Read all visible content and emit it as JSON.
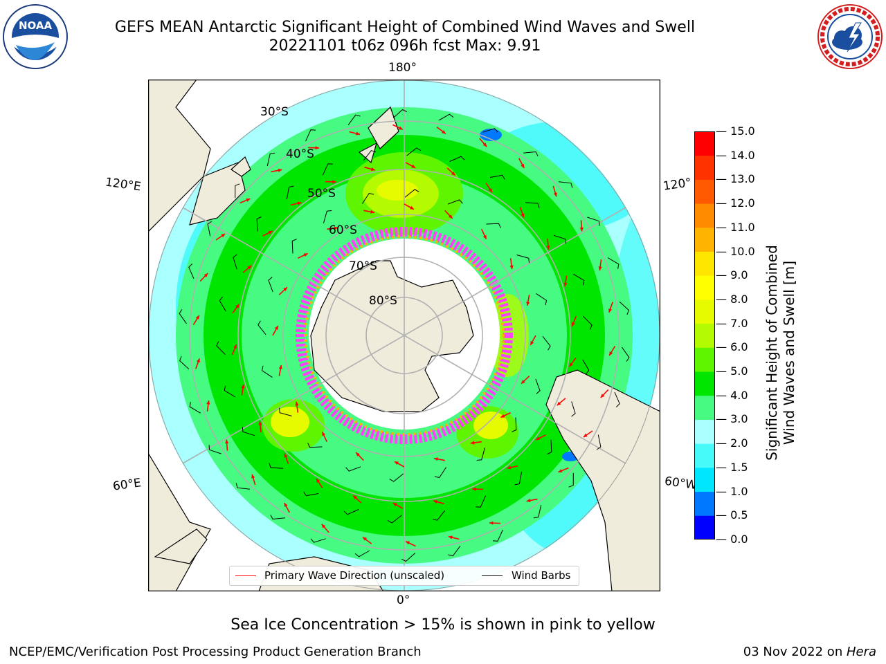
{
  "header": {
    "title": "GEFS MEAN Antarctic Significant Height of Combined Wind Waves and Swell",
    "subtitle": "20221101 t06z 096h fcst   Max: 9.91"
  },
  "logos": {
    "left": "NOAA",
    "left_ring": "NATIONAL OCEANIC AND ATMOSPHERIC ADMINISTRATION · U.S. DEPARTMENT OF COMMERCE",
    "right_ring": "NATIONAL WEATHER SERVICE"
  },
  "map": {
    "projection": "south-polar-stereographic",
    "lon_labels": [
      "180°",
      "120°E",
      "120°",
      "60°E",
      "60°W",
      "0°"
    ],
    "lat_labels": [
      "30°S",
      "40°S",
      "50°S",
      "60°S",
      "70°S",
      "80°S"
    ]
  },
  "legend": {
    "wave_label": "Primary Wave Direction (unscaled)",
    "wave_color": "#ff0000",
    "barb_label": "Wind Barbs",
    "barb_color": "#000000"
  },
  "colorbar": {
    "label_line1": "Significant Height of Combined",
    "label_line2": "Wind Waves and Swell [m]",
    "ticks": [
      "0.0",
      "0.5",
      "1.0",
      "1.5",
      "2.0",
      "3.0",
      "4.0",
      "5.0",
      "6.0",
      "7.0",
      "8.0",
      "9.0",
      "10.0",
      "11.0",
      "12.0",
      "13.0",
      "14.0",
      "15.0"
    ],
    "colors": [
      "#0000ff",
      "#0078ff",
      "#00e6ff",
      "#46fafa",
      "#aaffff",
      "#46fa82",
      "#00e600",
      "#5ff500",
      "#b4fa00",
      "#e6fa00",
      "#ffff00",
      "#ffe600",
      "#ffb400",
      "#ff8c00",
      "#ff5a00",
      "#ff3200",
      "#ff0000"
    ]
  },
  "caption": "Sea Ice Concentration > 15% is shown in pink to yellow",
  "footer": {
    "left": "NCEP/EMC/Verification Post Processing Product Generation Branch",
    "date": "03 Nov 2022 on ",
    "host": "Hera"
  }
}
